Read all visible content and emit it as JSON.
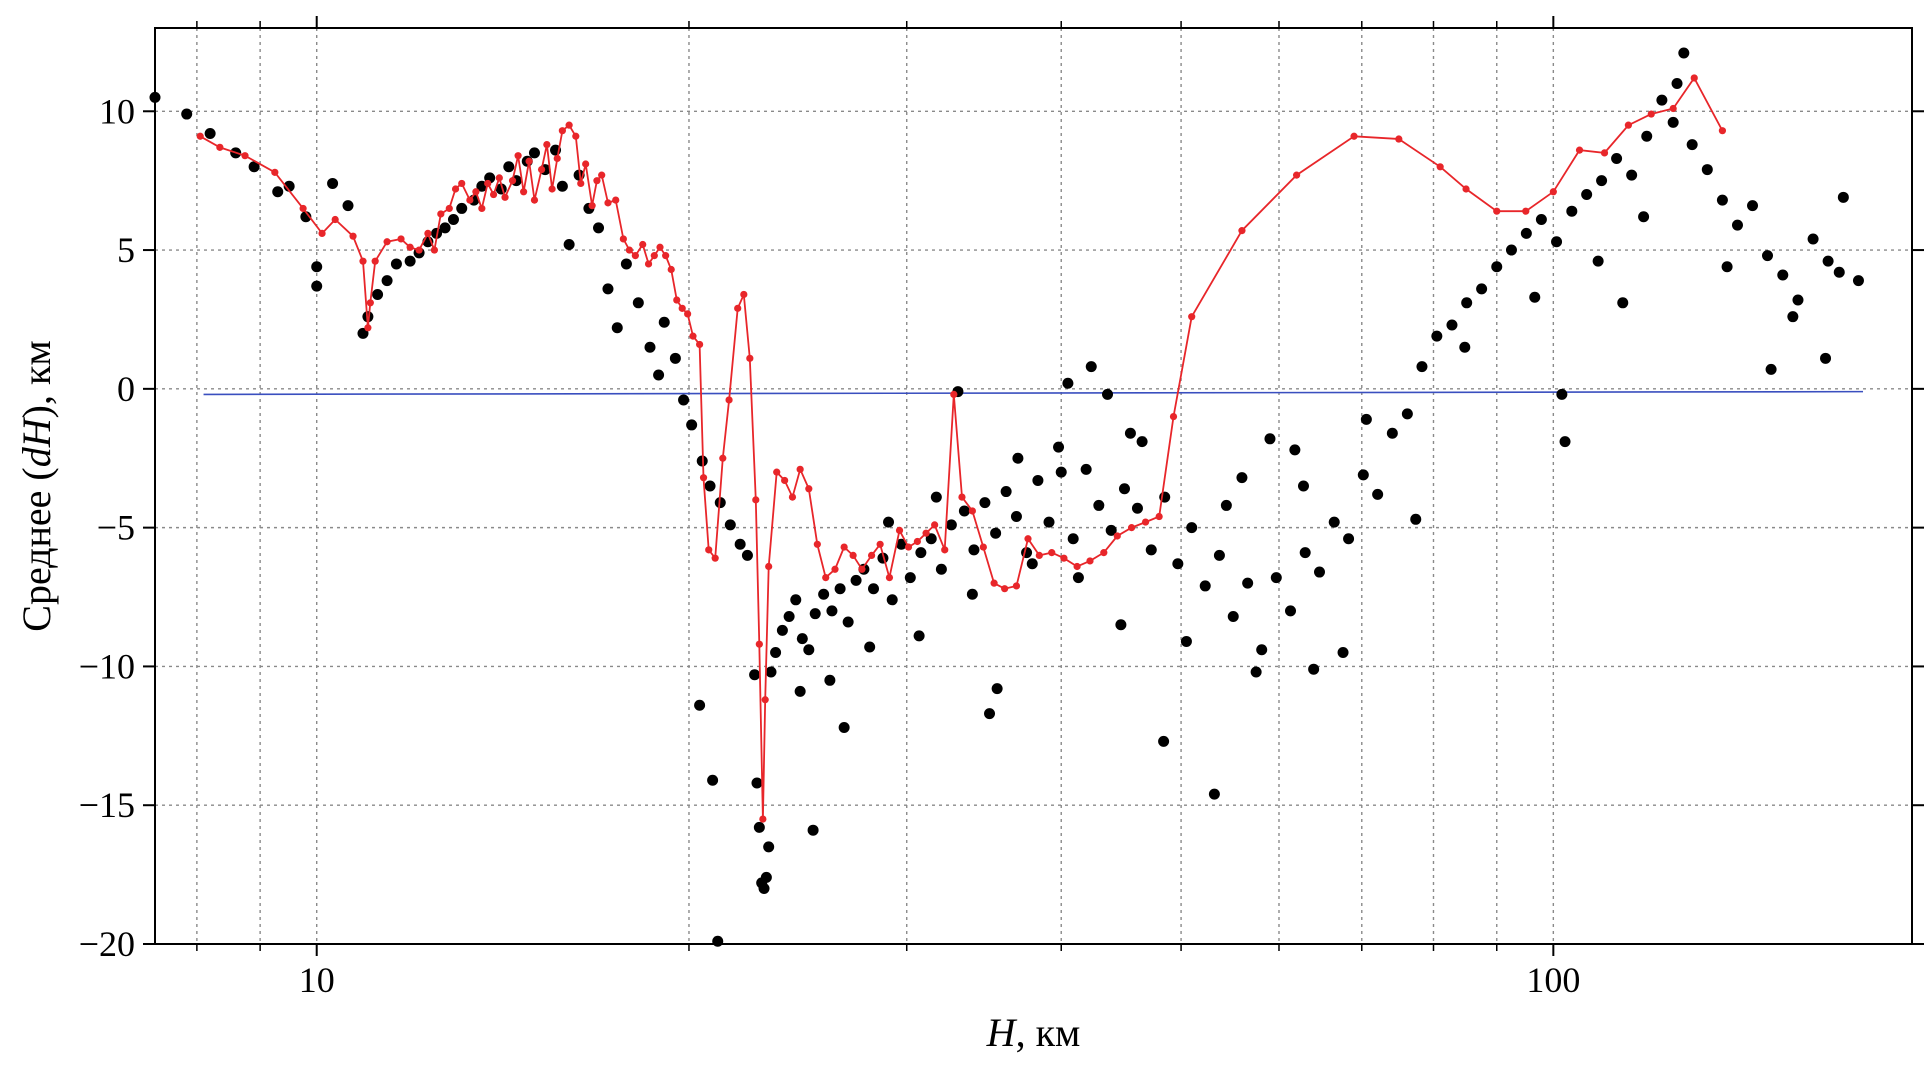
{
  "chart_data": {
    "type": "scatter",
    "xlabel_italic": "H",
    "xlabel_rest": ", км",
    "ylabel_prefix": "Среднее (",
    "ylabel_italic": "dH",
    "ylabel_suffix": "), км",
    "x_scale": "log",
    "xlim": [
      7.4,
      195
    ],
    "ylim": [
      -20,
      13
    ],
    "x_ticks": [
      10,
      100
    ],
    "x_tick_labels": [
      "10",
      "100"
    ],
    "x_minor_ticks": [
      8,
      9,
      20,
      30,
      40,
      50,
      60,
      70,
      80,
      90
    ],
    "y_ticks": [
      -20,
      -15,
      -10,
      -5,
      0,
      5,
      10
    ],
    "y_tick_labels": [
      "−20",
      "−15",
      "−10",
      "−5",
      "0",
      "5",
      "10"
    ],
    "grid": true,
    "colors": {
      "points": "#000000",
      "mean_line": "#e8262a",
      "zero_line": "#3a4fbf"
    },
    "zero_line": {
      "x": [
        8.1,
        178
      ],
      "y": [
        -0.2,
        -0.1
      ]
    },
    "scatter_points": [
      [
        7.4,
        10.5
      ],
      [
        7.85,
        9.9
      ],
      [
        8.2,
        9.2
      ],
      [
        8.6,
        8.5
      ],
      [
        8.9,
        8.0
      ],
      [
        9.3,
        7.1
      ],
      [
        9.5,
        7.3
      ],
      [
        9.8,
        6.2
      ],
      [
        10.0,
        4.4
      ],
      [
        10.0,
        3.7
      ],
      [
        10.3,
        7.4
      ],
      [
        10.6,
        6.6
      ],
      [
        10.9,
        2.0
      ],
      [
        11.0,
        2.6
      ],
      [
        11.2,
        3.4
      ],
      [
        11.4,
        3.9
      ],
      [
        11.6,
        4.5
      ],
      [
        11.9,
        4.6
      ],
      [
        12.1,
        4.9
      ],
      [
        12.3,
        5.3
      ],
      [
        12.5,
        5.6
      ],
      [
        12.7,
        5.8
      ],
      [
        12.9,
        6.1
      ],
      [
        13.1,
        6.5
      ],
      [
        13.4,
        6.8
      ],
      [
        13.6,
        7.3
      ],
      [
        13.8,
        7.6
      ],
      [
        14.1,
        7.2
      ],
      [
        14.3,
        8.0
      ],
      [
        14.5,
        7.5
      ],
      [
        14.8,
        8.2
      ],
      [
        15.0,
        8.5
      ],
      [
        15.3,
        7.9
      ],
      [
        15.6,
        8.6
      ],
      [
        15.8,
        7.3
      ],
      [
        16.0,
        5.2
      ],
      [
        16.3,
        7.7
      ],
      [
        16.6,
        6.5
      ],
      [
        16.9,
        5.8
      ],
      [
        17.2,
        3.6
      ],
      [
        17.5,
        2.2
      ],
      [
        17.8,
        4.5
      ],
      [
        18.2,
        3.1
      ],
      [
        18.6,
        1.5
      ],
      [
        18.9,
        0.5
      ],
      [
        19.1,
        2.4
      ],
      [
        19.5,
        1.1
      ],
      [
        19.8,
        -0.4
      ],
      [
        20.1,
        -1.3
      ],
      [
        20.5,
        -2.6
      ],
      [
        20.8,
        -3.5
      ],
      [
        21.2,
        -4.1
      ],
      [
        21.6,
        -4.9
      ],
      [
        22.0,
        -5.6
      ],
      [
        20.4,
        -11.4
      ],
      [
        20.9,
        -14.1
      ],
      [
        21.1,
        -19.9
      ],
      [
        22.3,
        -6.0
      ],
      [
        22.6,
        -10.3
      ],
      [
        22.7,
        -14.2
      ],
      [
        22.8,
        -15.8
      ],
      [
        22.9,
        -17.8
      ],
      [
        23.0,
        -18.0
      ],
      [
        23.1,
        -17.6
      ],
      [
        23.2,
        -16.5
      ],
      [
        23.3,
        -10.2
      ],
      [
        23.5,
        -9.5
      ],
      [
        23.8,
        -8.7
      ],
      [
        24.1,
        -8.2
      ],
      [
        24.4,
        -7.6
      ],
      [
        24.7,
        -9.0
      ],
      [
        25.0,
        -9.4
      ],
      [
        25.3,
        -8.1
      ],
      [
        25.7,
        -7.4
      ],
      [
        26.1,
        -8.0
      ],
      [
        26.5,
        -7.2
      ],
      [
        26.9,
        -8.4
      ],
      [
        27.3,
        -6.9
      ],
      [
        27.7,
        -6.5
      ],
      [
        28.2,
        -7.2
      ],
      [
        28.7,
        -6.1
      ],
      [
        29.2,
        -7.6
      ],
      [
        29.7,
        -5.6
      ],
      [
        30.2,
        -6.8
      ],
      [
        30.8,
        -5.9
      ],
      [
        31.4,
        -5.4
      ],
      [
        32.0,
        -6.5
      ],
      [
        32.6,
        -4.9
      ],
      [
        33.0,
        -0.1
      ],
      [
        33.4,
        -4.4
      ],
      [
        34.0,
        -5.8
      ],
      [
        34.7,
        -4.1
      ],
      [
        35.4,
        -5.2
      ],
      [
        36.1,
        -3.7
      ],
      [
        36.8,
        -4.6
      ],
      [
        37.5,
        -5.9
      ],
      [
        38.3,
        -3.3
      ],
      [
        39.1,
        -4.8
      ],
      [
        40.0,
        -3.0
      ],
      [
        40.9,
        -5.4
      ],
      [
        41.9,
        -2.9
      ],
      [
        42.9,
        -4.2
      ],
      [
        43.9,
        -5.1
      ],
      [
        45.0,
        -3.6
      ],
      [
        46.1,
        -4.3
      ],
      [
        47.3,
        -5.8
      ],
      [
        48.5,
        -3.9
      ],
      [
        49.7,
        -6.3
      ],
      [
        51.0,
        -5.0
      ],
      [
        52.3,
        -7.1
      ],
      [
        53.7,
        -6.0
      ],
      [
        55.1,
        -8.2
      ],
      [
        56.6,
        -7.0
      ],
      [
        58.1,
        -9.4
      ],
      [
        59.7,
        -6.8
      ],
      [
        61.3,
        -8.0
      ],
      [
        63.0,
        -5.9
      ],
      [
        64.7,
        -6.6
      ],
      [
        66.5,
        -4.8
      ],
      [
        68.3,
        -5.4
      ],
      [
        70.2,
        -3.1
      ],
      [
        72.1,
        -3.8
      ],
      [
        74.1,
        -1.6
      ],
      [
        76.2,
        -0.9
      ],
      [
        78.3,
        0.8
      ],
      [
        80.5,
        1.9
      ],
      [
        82.8,
        2.3
      ],
      [
        85.1,
        3.1
      ],
      [
        87.5,
        3.6
      ],
      [
        90.0,
        4.4
      ],
      [
        92.5,
        5.0
      ],
      [
        95.1,
        5.6
      ],
      [
        97.8,
        6.1
      ],
      [
        100.6,
        5.3
      ],
      [
        103.5,
        6.4
      ],
      [
        106.4,
        7.0
      ],
      [
        109.4,
        7.5
      ],
      [
        112.5,
        8.3
      ],
      [
        115.7,
        7.7
      ],
      [
        119.0,
        9.1
      ],
      [
        122.4,
        10.4
      ],
      [
        125.9,
        11.0
      ],
      [
        127.5,
        12.1
      ],
      [
        129.5,
        8.8
      ],
      [
        133.2,
        7.9
      ],
      [
        137.0,
        6.8
      ],
      [
        140.9,
        5.9
      ],
      [
        144.9,
        6.6
      ],
      [
        149.0,
        4.8
      ],
      [
        153.3,
        4.1
      ],
      [
        157.7,
        3.2
      ],
      [
        162.2,
        5.4
      ],
      [
        166.8,
        4.6
      ],
      [
        171.6,
        6.9
      ],
      [
        176.5,
        3.9
      ],
      [
        53.2,
        -14.6
      ],
      [
        48.4,
        -12.7
      ],
      [
        64.0,
        -10.1
      ],
      [
        67.6,
        -9.5
      ],
      [
        35.0,
        -11.7
      ],
      [
        35.5,
        -10.8
      ],
      [
        25.2,
        -15.9
      ],
      [
        26.7,
        -12.2
      ],
      [
        59.0,
        -1.8
      ],
      [
        102.2,
        -1.9
      ],
      [
        101.6,
        -0.2
      ],
      [
        77.4,
        -4.7
      ],
      [
        42.3,
        0.8
      ],
      [
        43.6,
        -0.2
      ],
      [
        40.5,
        0.2
      ],
      [
        113.8,
        3.1
      ],
      [
        125.0,
        9.6
      ],
      [
        150.0,
        0.7
      ],
      [
        166.0,
        1.1
      ],
      [
        46.5,
        -1.9
      ],
      [
        56.0,
        -3.2
      ],
      [
        61.8,
        -2.2
      ],
      [
        70.6,
        -1.1
      ],
      [
        84.8,
        1.5
      ],
      [
        96.6,
        3.3
      ],
      [
        108.7,
        4.6
      ],
      [
        118.3,
        6.2
      ],
      [
        138.2,
        4.4
      ],
      [
        156.2,
        2.6
      ],
      [
        170.3,
        4.2
      ],
      [
        30.7,
        -8.9
      ],
      [
        33.9,
        -7.4
      ],
      [
        37.9,
        -6.3
      ],
      [
        44.7,
        -8.5
      ],
      [
        50.5,
        -9.1
      ],
      [
        57.5,
        -10.2
      ],
      [
        28.0,
        -9.3
      ],
      [
        26.0,
        -10.5
      ],
      [
        24.6,
        -10.9
      ],
      [
        29.0,
        -4.8
      ],
      [
        31.7,
        -3.9
      ],
      [
        39.8,
        -2.1
      ],
      [
        45.5,
        -1.6
      ],
      [
        36.9,
        -2.5
      ],
      [
        41.3,
        -6.8
      ],
      [
        54.4,
        -4.2
      ],
      [
        62.8,
        -3.5
      ]
    ],
    "mean_line_points": [
      [
        8.05,
        9.1
      ],
      [
        8.35,
        8.7
      ],
      [
        8.75,
        8.4
      ],
      [
        9.25,
        7.8
      ],
      [
        9.75,
        6.5
      ],
      [
        10.1,
        5.6
      ],
      [
        10.35,
        6.1
      ],
      [
        10.7,
        5.5
      ],
      [
        10.9,
        4.6
      ],
      [
        11.0,
        2.2
      ],
      [
        11.05,
        3.1
      ],
      [
        11.15,
        4.6
      ],
      [
        11.4,
        5.3
      ],
      [
        11.7,
        5.4
      ],
      [
        11.9,
        5.1
      ],
      [
        12.1,
        5.0
      ],
      [
        12.3,
        5.6
      ],
      [
        12.45,
        5.0
      ],
      [
        12.6,
        6.3
      ],
      [
        12.8,
        6.5
      ],
      [
        12.95,
        7.2
      ],
      [
        13.1,
        7.4
      ],
      [
        13.3,
        6.8
      ],
      [
        13.45,
        7.1
      ],
      [
        13.6,
        6.5
      ],
      [
        13.75,
        7.4
      ],
      [
        13.9,
        7.0
      ],
      [
        14.05,
        7.6
      ],
      [
        14.2,
        6.9
      ],
      [
        14.4,
        7.5
      ],
      [
        14.55,
        8.4
      ],
      [
        14.7,
        7.1
      ],
      [
        14.85,
        8.2
      ],
      [
        15.0,
        6.8
      ],
      [
        15.2,
        7.9
      ],
      [
        15.35,
        8.8
      ],
      [
        15.5,
        7.2
      ],
      [
        15.65,
        8.3
      ],
      [
        15.8,
        9.3
      ],
      [
        16.0,
        9.5
      ],
      [
        16.2,
        9.1
      ],
      [
        16.35,
        7.4
      ],
      [
        16.5,
        8.1
      ],
      [
        16.7,
        6.6
      ],
      [
        16.85,
        7.5
      ],
      [
        17.0,
        7.7
      ],
      [
        17.2,
        6.7
      ],
      [
        17.45,
        6.8
      ],
      [
        17.7,
        5.4
      ],
      [
        17.9,
        5.0
      ],
      [
        18.1,
        4.8
      ],
      [
        18.35,
        5.2
      ],
      [
        18.55,
        4.5
      ],
      [
        18.75,
        4.8
      ],
      [
        18.95,
        5.1
      ],
      [
        19.15,
        4.8
      ],
      [
        19.35,
        4.3
      ],
      [
        19.55,
        3.2
      ],
      [
        19.75,
        2.9
      ],
      [
        19.95,
        2.7
      ],
      [
        20.15,
        1.9
      ],
      [
        20.4,
        1.6
      ],
      [
        20.55,
        -3.2
      ],
      [
        20.75,
        -5.8
      ],
      [
        21.0,
        -6.1
      ],
      [
        21.3,
        -2.5
      ],
      [
        21.55,
        -0.4
      ],
      [
        21.9,
        2.9
      ],
      [
        22.15,
        3.4
      ],
      [
        22.4,
        1.1
      ],
      [
        22.65,
        -4.0
      ],
      [
        22.8,
        -9.2
      ],
      [
        22.95,
        -15.5
      ],
      [
        23.05,
        -11.2
      ],
      [
        23.2,
        -6.4
      ],
      [
        23.55,
        -3.0
      ],
      [
        23.9,
        -3.3
      ],
      [
        24.25,
        -3.9
      ],
      [
        24.6,
        -2.9
      ],
      [
        25.0,
        -3.6
      ],
      [
        25.4,
        -5.6
      ],
      [
        25.8,
        -6.8
      ],
      [
        26.25,
        -6.5
      ],
      [
        26.7,
        -5.7
      ],
      [
        27.15,
        -6.0
      ],
      [
        27.6,
        -6.5
      ],
      [
        28.1,
        -6.0
      ],
      [
        28.55,
        -5.6
      ],
      [
        29.05,
        -6.8
      ],
      [
        29.6,
        -5.1
      ],
      [
        30.1,
        -5.7
      ],
      [
        30.6,
        -5.5
      ],
      [
        31.1,
        -5.2
      ],
      [
        31.6,
        -4.9
      ],
      [
        32.2,
        -5.8
      ],
      [
        32.75,
        -0.2
      ],
      [
        33.25,
        -3.9
      ],
      [
        33.9,
        -4.4
      ],
      [
        34.6,
        -5.7
      ],
      [
        35.3,
        -7.0
      ],
      [
        36.0,
        -7.2
      ],
      [
        36.8,
        -7.1
      ],
      [
        37.6,
        -5.4
      ],
      [
        38.4,
        -6.0
      ],
      [
        39.3,
        -5.9
      ],
      [
        40.2,
        -6.1
      ],
      [
        41.2,
        -6.4
      ],
      [
        42.2,
        -6.2
      ],
      [
        43.3,
        -5.9
      ],
      [
        44.4,
        -5.3
      ],
      [
        45.6,
        -5.0
      ],
      [
        46.8,
        -4.8
      ],
      [
        48.0,
        -4.6
      ],
      [
        49.3,
        -1.0
      ],
      [
        51.0,
        2.6
      ],
      [
        56.0,
        5.7
      ],
      [
        62.0,
        7.7
      ],
      [
        69.0,
        9.1
      ],
      [
        75.0,
        9.0
      ],
      [
        81.0,
        8.0
      ],
      [
        85.0,
        7.2
      ],
      [
        90.0,
        6.4
      ],
      [
        95.0,
        6.4
      ],
      [
        100.0,
        7.1
      ],
      [
        105.0,
        8.6
      ],
      [
        110.0,
        8.5
      ],
      [
        115.0,
        9.5
      ],
      [
        120.0,
        9.9
      ],
      [
        125.0,
        10.1
      ],
      [
        130.0,
        11.2
      ],
      [
        137.0,
        9.3
      ]
    ]
  }
}
